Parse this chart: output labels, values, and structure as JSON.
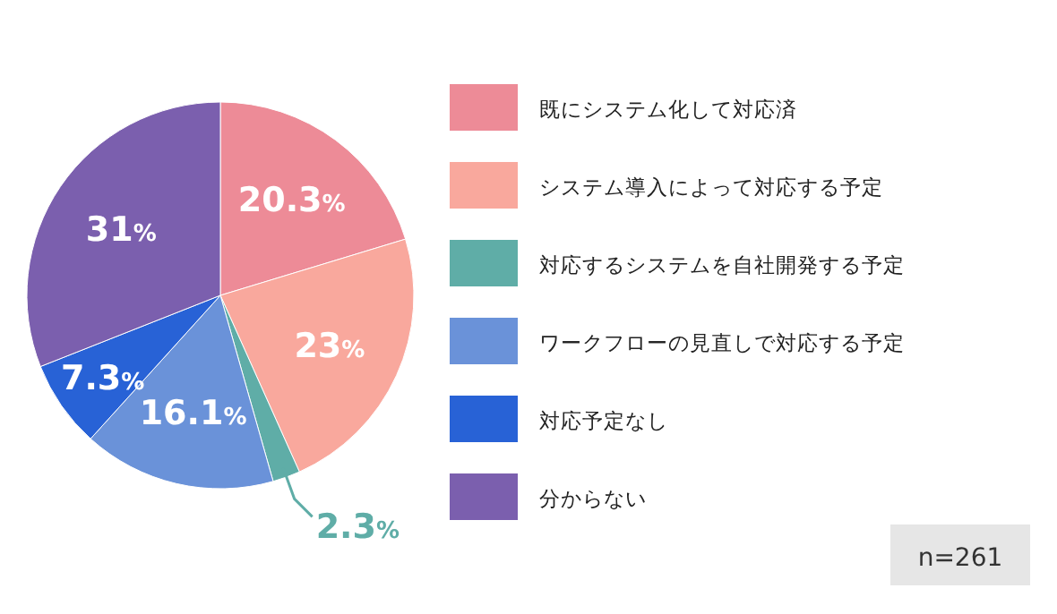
{
  "chart_data": {
    "type": "pie",
    "categories": [
      "既にシステム化して対応済",
      "システム導入によって対応する予定",
      "対応するシステムを自社開発する予定",
      "ワークフローの見直しで対応する予定",
      "対応予定なし",
      "分からない"
    ],
    "values": [
      20.3,
      23,
      2.3,
      16.1,
      7.3,
      31
    ],
    "colors": [
      "#ed8b97",
      "#f9a89d",
      "#5fada7",
      "#6a92d9",
      "#2862d6",
      "#7b5fae"
    ],
    "value_labels": [
      "20.3%",
      "23%",
      "2.3%",
      "16.1%",
      "7.3%",
      "31%"
    ],
    "legend": "right",
    "annotations": [
      "n=261"
    ]
  }
}
